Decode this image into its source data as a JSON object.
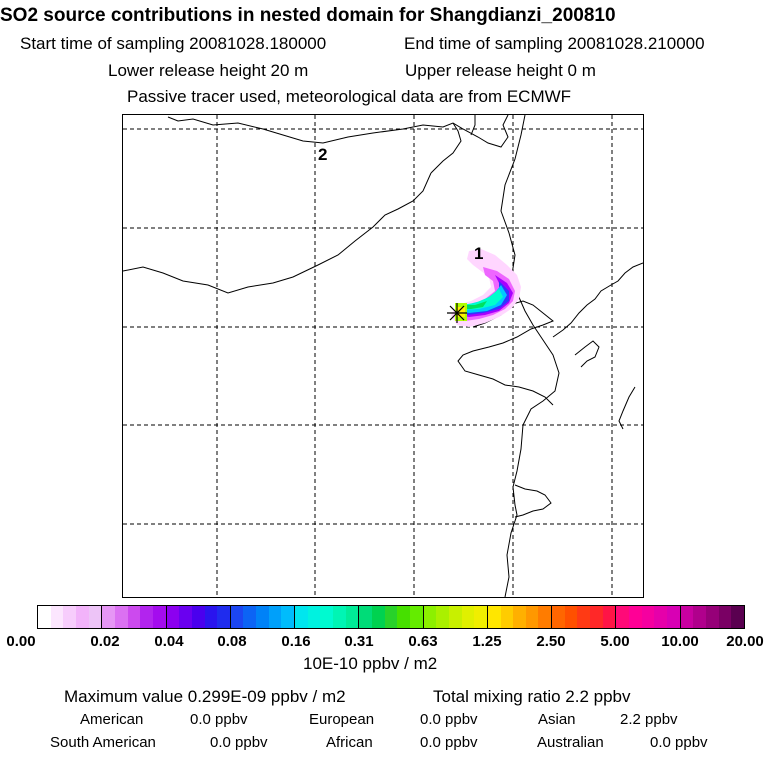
{
  "header": {
    "title": "SO2 source contributions in nested domain for Shangdianzi_200810",
    "start_time": "Start time of sampling 20081028.180000",
    "end_time": "End time of sampling 20081028.210000",
    "lower_release": "Lower release height   20 m",
    "upper_release": "Upper release height    0 m",
    "tracer_note": "Passive tracer used, meteorological data are from ECMWF"
  },
  "map": {
    "label_1": "1",
    "label_2": "2",
    "station_marker": "star-cross",
    "plume_colors": [
      "#ffd6ff",
      "#ee66ff",
      "#a700ff",
      "#3333ff",
      "#00c8ff",
      "#00ffcc",
      "#00e060",
      "#b0ff00",
      "#fff000"
    ]
  },
  "colorbar": {
    "ticks": [
      "0.00",
      "0.02",
      "0.04",
      "0.08",
      "0.16",
      "0.31",
      "0.63",
      "1.25",
      "2.50",
      "5.00",
      "10.00",
      "20.00"
    ],
    "unit": "10E-10 ppbv / m2",
    "colors": [
      [
        "#ffffff",
        "#fce6fe",
        "#f7cdfc",
        "#f2b3fa",
        "#edc4f7"
      ],
      [
        "#e696f5",
        "#db71f2",
        "#cc4aee",
        "#b224ee",
        "#a40cee"
      ],
      [
        "#8c00f0",
        "#6a00f0",
        "#4a00ee",
        "#2a14ee",
        "#1f2cee"
      ],
      [
        "#1c46f2",
        "#0c64f5",
        "#0082f7",
        "#00a0fa",
        "#00bcfc"
      ],
      [
        "#00e6ee",
        "#00f2e0",
        "#00fad0",
        "#00f5b4",
        "#00ec98"
      ],
      [
        "#00dc78",
        "#00d250",
        "#28d22a",
        "#46e000",
        "#64ec00"
      ],
      [
        "#8cf000",
        "#aaf000",
        "#c8f000",
        "#e0f000",
        "#f0ee00"
      ],
      [
        "#ffe600",
        "#ffcc00",
        "#ffb000",
        "#ff9800",
        "#ff7c00"
      ],
      [
        "#ff6600",
        "#ff5000",
        "#ff3a14",
        "#ff2828",
        "#ff1446"
      ],
      [
        "#ff0a78",
        "#ff0096",
        "#f500a0",
        "#e600aa",
        "#d800b4"
      ],
      [
        "#c800a0",
        "#b0008c",
        "#960078",
        "#7a0064",
        "#5a0050"
      ]
    ]
  },
  "stats": {
    "max_value": "Maximum value  0.299E-09 ppbv / m2",
    "total_mixing": "Total mixing ratio        2.2 ppbv",
    "american_label": "American",
    "american_value": "0.0 ppbv",
    "european_label": "European",
    "european_value": "0.0 ppbv",
    "asian_label": "Asian",
    "asian_value": "2.2 ppbv",
    "south_american_label": "South American",
    "south_american_value": "0.0 ppbv",
    "african_label": "African",
    "african_value": "0.0 ppbv",
    "australian_label": "Australian",
    "australian_value": "0.0 ppbv"
  }
}
